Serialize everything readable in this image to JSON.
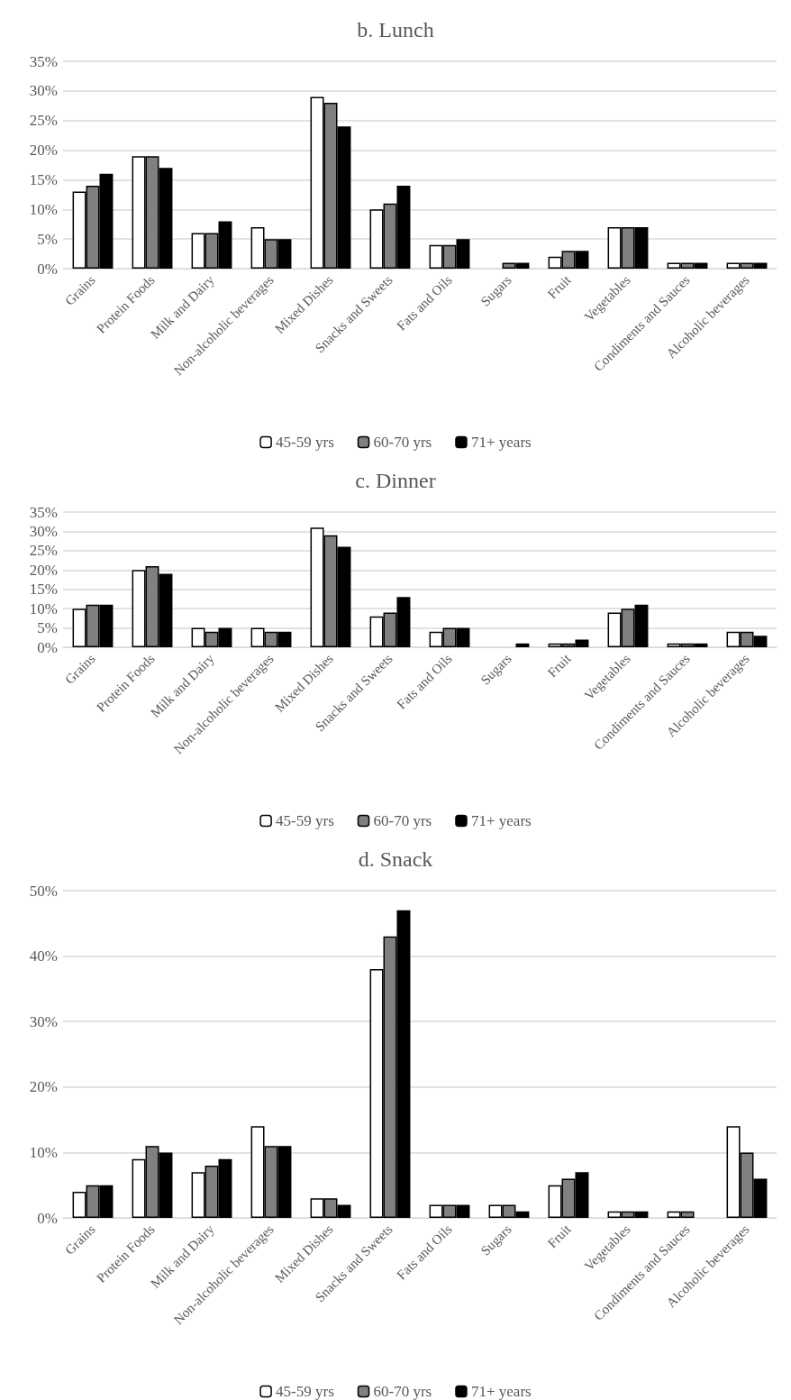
{
  "chart_data": [
    {
      "type": "bar",
      "title": "b. Lunch",
      "categories": [
        "Grains",
        "Protein Foods",
        "Milk and Dairy",
        "Non-alcoholic beverages",
        "Mixed Dishes",
        "Snacks and Sweets",
        "Fats and Oils",
        "Sugars",
        "Fruit",
        "Vegetables",
        "Condiments and Sauces",
        "Alcoholic beverages"
      ],
      "series": [
        {
          "name": "45-59 yrs",
          "color": "#ffffff",
          "values": [
            13,
            19,
            6,
            7,
            29,
            10,
            4,
            0,
            2,
            7,
            1,
            1
          ]
        },
        {
          "name": "60-70 yrs",
          "color": "#808080",
          "values": [
            14,
            19,
            6,
            5,
            28,
            11,
            4,
            1,
            3,
            7,
            1,
            1
          ]
        },
        {
          "name": "71+ years",
          "color": "#000000",
          "values": [
            16,
            17,
            8,
            5,
            24,
            14,
            5,
            1,
            3,
            7,
            1,
            1
          ]
        }
      ],
      "ylim": [
        0,
        35
      ],
      "yticks": [
        {
          "value": 0,
          "label": "0%"
        },
        {
          "value": 5,
          "label": "5%"
        },
        {
          "value": 10,
          "label": "10%"
        },
        {
          "value": 15,
          "label": "15%"
        },
        {
          "value": 20,
          "label": "20%"
        },
        {
          "value": 25,
          "label": "25%"
        },
        {
          "value": 30,
          "label": "30%"
        },
        {
          "value": 35,
          "label": "35%"
        }
      ],
      "grid": "y",
      "legend": "bottom"
    },
    {
      "type": "bar",
      "title": "c. Dinner",
      "categories": [
        "Grains",
        "Protein Foods",
        "Milk and Dairy",
        "Non-alcoholic beverages",
        "Mixed Dishes",
        "Snacks and Sweets",
        "Fats and Oils",
        "Sugars",
        "Fruit",
        "Vegetables",
        "Condiments and Sauces",
        "Alcoholic beverages"
      ],
      "series": [
        {
          "name": "45-59 yrs",
          "color": "#ffffff",
          "values": [
            10,
            20,
            5,
            5,
            31,
            8,
            4,
            0,
            1,
            9,
            1,
            4
          ]
        },
        {
          "name": "60-70 yrs",
          "color": "#808080",
          "values": [
            11,
            21,
            4,
            4,
            29,
            9,
            5,
            0,
            1,
            10,
            1,
            4
          ]
        },
        {
          "name": "71+ years",
          "color": "#000000",
          "values": [
            11,
            19,
            5,
            4,
            26,
            13,
            5,
            1,
            2,
            11,
            1,
            3
          ]
        }
      ],
      "ylim": [
        0,
        35
      ],
      "yticks": [
        {
          "value": 0,
          "label": "0%"
        },
        {
          "value": 5,
          "label": "5%"
        },
        {
          "value": 10,
          "label": "10%"
        },
        {
          "value": 15,
          "label": "15%"
        },
        {
          "value": 20,
          "label": "20%"
        },
        {
          "value": 25,
          "label": "25%"
        },
        {
          "value": 30,
          "label": "30%"
        },
        {
          "value": 35,
          "label": "35%"
        }
      ],
      "grid": "y",
      "legend": "bottom"
    },
    {
      "type": "bar",
      "title": "d. Snack",
      "categories": [
        "Grains",
        "Protein Foods",
        "Milk and Dairy",
        "Non-alcoholic beverages",
        "Mixed Dishes",
        "Snacks and Sweets",
        "Fats and Oils",
        "Sugars",
        "Fruit",
        "Vegetables",
        "Condiments and Sauces",
        "Alcoholic beverages"
      ],
      "series": [
        {
          "name": "45-59 yrs",
          "color": "#ffffff",
          "values": [
            4,
            9,
            7,
            14,
            3,
            38,
            2,
            2,
            5,
            1,
            1,
            14
          ]
        },
        {
          "name": "60-70 yrs",
          "color": "#808080",
          "values": [
            5,
            11,
            8,
            11,
            3,
            43,
            2,
            2,
            6,
            1,
            1,
            10
          ]
        },
        {
          "name": "71+ years",
          "color": "#000000",
          "values": [
            5,
            10,
            9,
            11,
            2,
            47,
            2,
            1,
            7,
            1,
            0,
            6
          ]
        }
      ],
      "ylim": [
        0,
        50
      ],
      "yticks": [
        {
          "value": 0,
          "label": "0%"
        },
        {
          "value": 10,
          "label": "10%"
        },
        {
          "value": 20,
          "label": "20%"
        },
        {
          "value": 30,
          "label": "30%"
        },
        {
          "value": 40,
          "label": "40%"
        },
        {
          "value": 50,
          "label": "50%"
        }
      ],
      "grid": "y",
      "legend": "bottom"
    }
  ]
}
